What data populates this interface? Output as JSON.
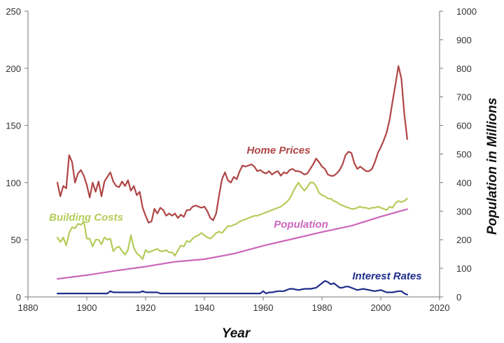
{
  "chart_data": {
    "type": "line",
    "xlabel": "Year",
    "ylabel": "",
    "y2label": "Population in Millions",
    "xlim": [
      1880,
      2020
    ],
    "ylim": [
      0,
      250
    ],
    "y2lim": [
      0,
      1000
    ],
    "x_ticks": [
      "1880",
      "1900",
      "1920",
      "1940",
      "1960",
      "1980",
      "2000",
      "2020"
    ],
    "y_ticks": [
      "0",
      "50",
      "100",
      "150",
      "200",
      "250"
    ],
    "y2_ticks": [
      "0",
      "100",
      "200",
      "300",
      "400",
      "500",
      "600",
      "700",
      "800",
      "900",
      "1000"
    ],
    "grid": false,
    "series": [
      {
        "name": "Home Prices",
        "label": "Home Prices",
        "color": "#b04545",
        "axis": "left",
        "x": [
          1890,
          1891,
          1892,
          1893,
          1894,
          1895,
          1896,
          1897,
          1898,
          1899,
          1900,
          1901,
          1902,
          1903,
          1904,
          1905,
          1906,
          1907,
          1908,
          1909,
          1910,
          1911,
          1912,
          1913,
          1914,
          1915,
          1916,
          1917,
          1918,
          1919,
          1920,
          1921,
          1922,
          1923,
          1924,
          1925,
          1926,
          1927,
          1928,
          1929,
          1930,
          1931,
          1932,
          1933,
          1934,
          1935,
          1936,
          1937,
          1938,
          1939,
          1940,
          1941,
          1942,
          1943,
          1944,
          1945,
          1946,
          1947,
          1948,
          1949,
          1950,
          1951,
          1952,
          1953,
          1954,
          1955,
          1956,
          1957,
          1958,
          1959,
          1960,
          1961,
          1962,
          1963,
          1964,
          1965,
          1966,
          1967,
          1968,
          1969,
          1970,
          1971,
          1972,
          1973,
          1974,
          1975,
          1976,
          1977,
          1978,
          1979,
          1980,
          1981,
          1982,
          1983,
          1984,
          1985,
          1986,
          1987,
          1988,
          1989,
          1990,
          1991,
          1992,
          1993,
          1994,
          1995,
          1996,
          1997,
          1998,
          1999,
          2000,
          2001,
          2002,
          2003,
          2004,
          2005,
          2006,
          2007,
          2008,
          2009
        ],
        "values": [
          100,
          88,
          97,
          95,
          124,
          118,
          100,
          108,
          111,
          106,
          98,
          87,
          100,
          92,
          101,
          88,
          101,
          105,
          109,
          101,
          97,
          96,
          101,
          97,
          102,
          93,
          97,
          89,
          92,
          78,
          71,
          65,
          66,
          77,
          73,
          78,
          76,
          71,
          73,
          71,
          73,
          69,
          72,
          70,
          76,
          76,
          79,
          80,
          79,
          78,
          79,
          75,
          69,
          67,
          73,
          89,
          103,
          109,
          102,
          100,
          105,
          103,
          110,
          115,
          114,
          115,
          116,
          114,
          110,
          111,
          109,
          108,
          110,
          107,
          109,
          110,
          106,
          109,
          108,
          111,
          112,
          110,
          110,
          109,
          107,
          108,
          112,
          116,
          121,
          118,
          114,
          112,
          107,
          106,
          106,
          108,
          111,
          116,
          124,
          127,
          126,
          117,
          112,
          114,
          112,
          110,
          110,
          112,
          118,
          126,
          131,
          137,
          144,
          155,
          171,
          186,
          202,
          191,
          160,
          138
        ]
      },
      {
        "name": "Building Costs",
        "label": "Building Costs",
        "color": "#b4cc5a",
        "axis": "left",
        "x": [
          1890,
          1891,
          1892,
          1893,
          1894,
          1895,
          1896,
          1897,
          1898,
          1899,
          1900,
          1901,
          1902,
          1903,
          1904,
          1905,
          1906,
          1907,
          1908,
          1909,
          1910,
          1911,
          1912,
          1913,
          1914,
          1915,
          1916,
          1917,
          1918,
          1919,
          1920,
          1921,
          1922,
          1923,
          1924,
          1925,
          1926,
          1927,
          1928,
          1929,
          1930,
          1931,
          1932,
          1933,
          1934,
          1935,
          1936,
          1937,
          1938,
          1939,
          1940,
          1941,
          1942,
          1943,
          1944,
          1945,
          1946,
          1947,
          1948,
          1949,
          1950,
          1951,
          1952,
          1953,
          1954,
          1955,
          1956,
          1957,
          1958,
          1959,
          1960,
          1961,
          1962,
          1963,
          1964,
          1965,
          1966,
          1967,
          1968,
          1969,
          1970,
          1971,
          1972,
          1973,
          1974,
          1975,
          1976,
          1977,
          1978,
          1979,
          1980,
          1981,
          1982,
          1983,
          1984,
          1985,
          1986,
          1987,
          1988,
          1989,
          1990,
          1991,
          1992,
          1993,
          1994,
          1995,
          1996,
          1997,
          1998,
          1999,
          2000,
          2001,
          2002,
          2003,
          2004,
          2005,
          2006,
          2007,
          2008,
          2009
        ],
        "values": [
          52,
          48,
          52,
          45,
          56,
          61,
          60,
          64,
          63,
          66,
          51,
          51,
          44,
          50,
          50,
          46,
          52,
          50,
          51,
          40,
          43,
          44,
          40,
          37,
          41,
          54,
          43,
          38,
          36,
          33,
          41,
          39,
          40,
          41,
          42,
          40,
          40,
          41,
          39,
          39,
          36,
          41,
          45,
          44,
          49,
          48,
          51,
          53,
          54,
          56,
          54,
          52,
          51,
          53,
          56,
          57,
          56,
          59,
          62,
          62,
          63,
          64,
          66,
          67,
          68,
          69,
          70,
          71,
          71,
          72,
          73,
          74,
          75,
          76,
          77,
          78,
          79,
          81,
          83,
          86,
          91,
          96,
          100,
          96,
          93,
          96,
          100,
          100,
          97,
          91,
          89,
          88,
          86,
          86,
          84,
          83,
          81,
          80,
          79,
          78,
          77,
          77,
          78,
          79,
          78,
          78,
          77,
          78,
          78,
          79,
          78,
          77,
          76,
          79,
          78,
          82,
          84,
          83,
          84,
          86
        ]
      },
      {
        "name": "Population",
        "label": "Population",
        "color": "#cc66bb",
        "axis": "right",
        "x": [
          1890,
          1900,
          1910,
          1920,
          1930,
          1940,
          1950,
          1960,
          1970,
          1980,
          1990,
          2000,
          2009
        ],
        "values": [
          63,
          76,
          92,
          106,
          123,
          132,
          151,
          179,
          203,
          227,
          249,
          281,
          307
        ]
      },
      {
        "name": "Interest Rates",
        "label": "Interest Rates",
        "color": "#1f2d8c",
        "axis": "left",
        "x": [
          1890,
          1900,
          1906,
          1907,
          1908,
          1909,
          1910,
          1915,
          1918,
          1919,
          1920,
          1923,
          1924,
          1925,
          1930,
          1940,
          1950,
          1957,
          1959,
          1960,
          1961,
          1962,
          1963,
          1965,
          1967,
          1969,
          1970,
          1972,
          1974,
          1976,
          1978,
          1979,
          1980,
          1981,
          1982,
          1983,
          1984,
          1985,
          1986,
          1987,
          1988,
          1989,
          1990,
          1992,
          1994,
          1996,
          1998,
          2000,
          2002,
          2004,
          2006,
          2007,
          2008,
          2009
        ],
        "values": [
          3,
          3,
          3,
          3,
          5,
          4,
          4,
          4,
          4,
          5,
          4,
          4,
          4,
          3,
          3,
          3,
          3,
          3,
          3,
          5,
          3,
          4,
          4,
          5,
          5,
          7,
          7,
          6,
          7,
          7,
          8,
          10,
          12,
          14,
          13,
          11,
          12,
          10,
          8,
          8,
          9,
          9,
          8,
          6,
          7,
          6,
          5,
          6,
          4,
          4,
          5,
          5,
          3,
          2
        ]
      }
    ]
  }
}
